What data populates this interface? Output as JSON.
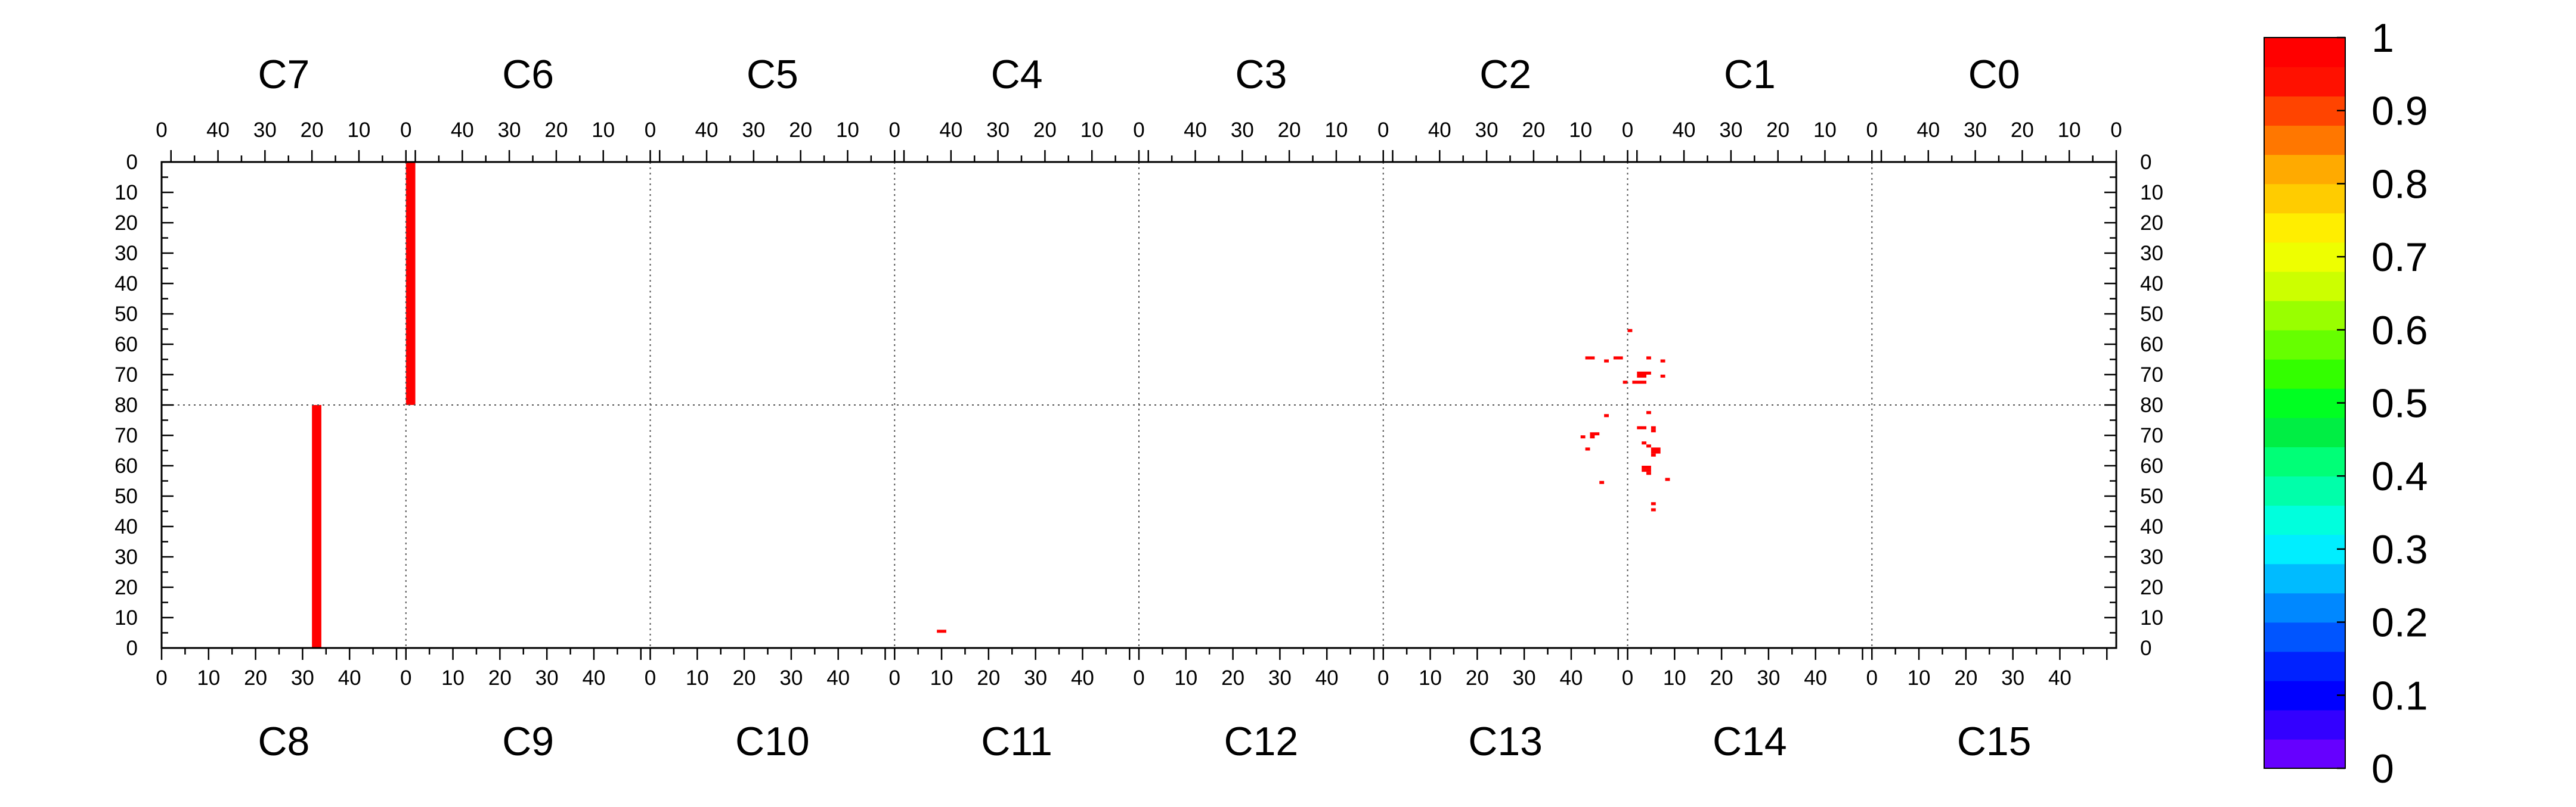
{
  "chart_data": {
    "type": "heatmap",
    "top_chip_labels": [
      "C7",
      "C6",
      "C5",
      "C4",
      "C3",
      "C2",
      "C1",
      "C0"
    ],
    "bottom_chip_labels": [
      "C8",
      "C9",
      "C10",
      "C11",
      "C12",
      "C13",
      "C14",
      "C15"
    ],
    "chip_columns": 52,
    "half_rows": 80,
    "top_col_tick_values": [
      40,
      30,
      20,
      10,
      0
    ],
    "bottom_col_tick_values": [
      0,
      10,
      20,
      30,
      40
    ],
    "row_tick_values_top_half": [
      0,
      10,
      20,
      30,
      40,
      50,
      60,
      70,
      80
    ],
    "row_tick_values_bottom_half": [
      70,
      60,
      50,
      40,
      30,
      20,
      10,
      0
    ],
    "colorbar": {
      "min": 0,
      "max": 1,
      "tick_labels": [
        "0",
        "0.1",
        "0.2",
        "0.3",
        "0.4",
        "0.5",
        "0.6",
        "0.7",
        "0.8",
        "0.9",
        "1"
      ],
      "colors": [
        "#6600ff",
        "#3300ff",
        "#0000ff",
        "#0022ff",
        "#0055ff",
        "#0088ff",
        "#00bbff",
        "#00eeff",
        "#00ffdd",
        "#00ffaa",
        "#00ff77",
        "#00ee44",
        "#00ff22",
        "#33ff00",
        "#66ff00",
        "#99ff00",
        "#ccff00",
        "#eeff00",
        "#ffee00",
        "#ffcc00",
        "#ffaa00",
        "#ff7700",
        "#ff4400",
        "#ff1100",
        "#ff0000"
      ]
    },
    "hit_value": 1,
    "hit_color": "#ff0000",
    "cells": [
      {
        "chip": "C6",
        "cols": [
          50,
          51
        ],
        "rows": [
          0,
          79
        ],
        "value": 1
      },
      {
        "chip": "C8",
        "cols": [
          32,
          33
        ],
        "rows": [
          0,
          79
        ],
        "value": 1
      },
      {
        "chip": "C11",
        "cols": [
          9,
          10
        ],
        "rows": [
          5,
          5
        ],
        "value": 1
      },
      {
        "chip": "C1",
        "cols": [
          51,
          51
        ],
        "rows": [
          55,
          55
        ],
        "value": 1
      },
      {
        "chip": "C2",
        "cols": [
          7,
          8
        ],
        "rows": [
          64,
          64
        ],
        "value": 1
      },
      {
        "chip": "C2",
        "cols": [
          1,
          2
        ],
        "rows": [
          64,
          64
        ],
        "value": 1
      },
      {
        "chip": "C1",
        "cols": [
          47,
          47
        ],
        "rows": [
          64,
          64
        ],
        "value": 1
      },
      {
        "chip": "C1",
        "cols": [
          44,
          44
        ],
        "rows": [
          65,
          65
        ],
        "value": 1
      },
      {
        "chip": "C2",
        "cols": [
          4,
          4
        ],
        "rows": [
          65,
          65
        ],
        "value": 1
      },
      {
        "chip": "C1",
        "cols": [
          47,
          49
        ],
        "rows": [
          69,
          69
        ],
        "value": 1
      },
      {
        "chip": "C1",
        "cols": [
          48,
          49
        ],
        "rows": [
          70,
          70
        ],
        "value": 1
      },
      {
        "chip": "C1",
        "cols": [
          44,
          44
        ],
        "rows": [
          70,
          70
        ],
        "value": 1
      },
      {
        "chip": "C2",
        "cols": [
          0,
          0
        ],
        "rows": [
          72,
          72
        ],
        "value": 1
      },
      {
        "chip": "C1",
        "cols": [
          48,
          50
        ],
        "rows": [
          72,
          72
        ],
        "value": 1
      },
      {
        "chip": "C14",
        "cols": [
          4,
          4
        ],
        "rows": [
          77,
          77
        ],
        "value": 1
      },
      {
        "chip": "C13",
        "cols": [
          47,
          47
        ],
        "rows": [
          76,
          76
        ],
        "value": 1
      },
      {
        "chip": "C14",
        "cols": [
          5,
          5
        ],
        "rows": [
          72,
          72
        ],
        "value": 1
      },
      {
        "chip": "C14",
        "cols": [
          2,
          3
        ],
        "rows": [
          72,
          72
        ],
        "value": 1
      },
      {
        "chip": "C13",
        "cols": [
          44,
          45
        ],
        "rows": [
          70,
          70
        ],
        "value": 1
      },
      {
        "chip": "C13",
        "cols": [
          44,
          44
        ],
        "rows": [
          69,
          69
        ],
        "value": 1
      },
      {
        "chip": "C13",
        "cols": [
          42,
          42
        ],
        "rows": [
          69,
          69
        ],
        "value": 1
      },
      {
        "chip": "C14",
        "cols": [
          5,
          5
        ],
        "rows": [
          71,
          71
        ],
        "value": 1
      },
      {
        "chip": "C14",
        "cols": [
          3,
          3
        ],
        "rows": [
          67,
          67
        ],
        "value": 1
      },
      {
        "chip": "C14",
        "cols": [
          4,
          4
        ],
        "rows": [
          66,
          66
        ],
        "value": 1
      },
      {
        "chip": "C13",
        "cols": [
          43,
          43
        ],
        "rows": [
          65,
          65
        ],
        "value": 1
      },
      {
        "chip": "C14",
        "cols": [
          5,
          6
        ],
        "rows": [
          65,
          65
        ],
        "value": 1
      },
      {
        "chip": "C14",
        "cols": [
          5,
          6
        ],
        "rows": [
          64,
          64
        ],
        "value": 1
      },
      {
        "chip": "C14",
        "cols": [
          5,
          5
        ],
        "rows": [
          63,
          63
        ],
        "value": 1
      },
      {
        "chip": "C14",
        "cols": [
          3,
          4
        ],
        "rows": [
          59,
          59
        ],
        "value": 1
      },
      {
        "chip": "C14",
        "cols": [
          4,
          4
        ],
        "rows": [
          58,
          58
        ],
        "value": 1
      },
      {
        "chip": "C14",
        "cols": [
          3,
          3
        ],
        "rows": [
          58,
          58
        ],
        "value": 1
      },
      {
        "chip": "C14",
        "cols": [
          4,
          4
        ],
        "rows": [
          57,
          57
        ],
        "value": 1
      },
      {
        "chip": "C14",
        "cols": [
          8,
          8
        ],
        "rows": [
          55,
          55
        ],
        "value": 1
      },
      {
        "chip": "C13",
        "cols": [
          46,
          46
        ],
        "rows": [
          54,
          54
        ],
        "value": 1
      },
      {
        "chip": "C14",
        "cols": [
          5,
          5
        ],
        "rows": [
          47,
          47
        ],
        "value": 1
      },
      {
        "chip": "C14",
        "cols": [
          5,
          5
        ],
        "rows": [
          45,
          45
        ],
        "value": 1
      }
    ]
  }
}
